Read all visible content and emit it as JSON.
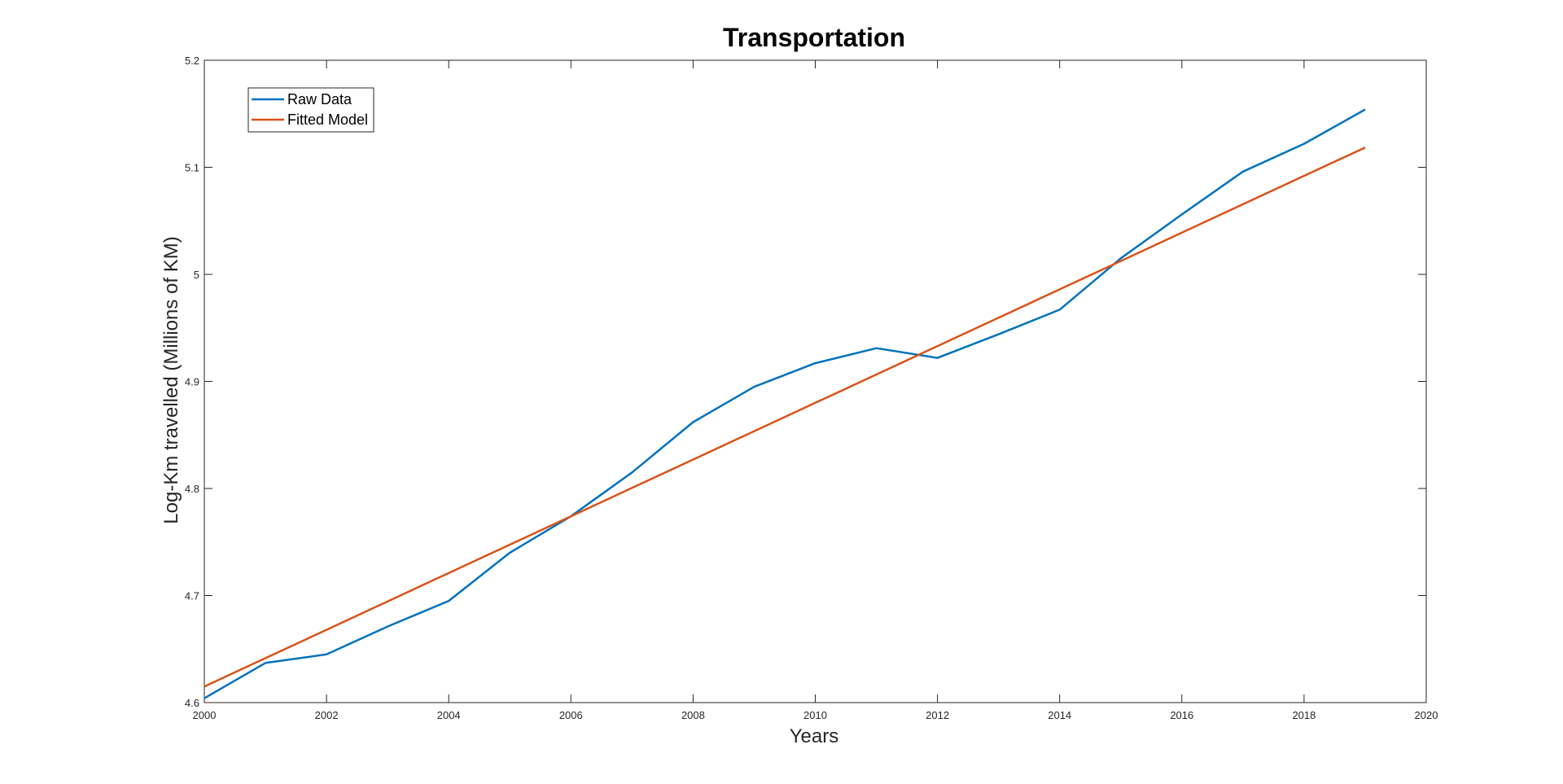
{
  "chart_data": {
    "type": "line",
    "title": "Transportation",
    "xlabel": "Years",
    "ylabel": "Log-Km travelled (Millions of KM)",
    "xlim": [
      2000,
      2020
    ],
    "ylim": [
      4.6,
      5.2
    ],
    "xticks": [
      "2000",
      "2002",
      "2004",
      "2006",
      "2008",
      "2010",
      "2012",
      "2014",
      "2016",
      "2018",
      "2020"
    ],
    "yticks": [
      "4.6",
      "4.7",
      "4.8",
      "4.9",
      "5",
      "5.1",
      "5.2"
    ],
    "grid": false,
    "legend": "top-left",
    "x": [
      2000,
      2001,
      2002,
      2003,
      2004,
      2005,
      2006,
      2007,
      2008,
      2009,
      2010,
      2011,
      2012,
      2013,
      2014,
      2015,
      2016,
      2017,
      2018,
      2019
    ],
    "series": [
      {
        "name": "Raw Data",
        "color": "#0072BD",
        "values": [
          4.604,
          4.637,
          4.645,
          4.671,
          4.695,
          4.74,
          4.774,
          4.815,
          4.862,
          4.895,
          4.917,
          4.931,
          4.922,
          4.944,
          4.967,
          5.015,
          5.056,
          5.096,
          5.122,
          5.154
        ]
      },
      {
        "name": "Fitted Model",
        "color": "#D95319",
        "values": [
          4.615,
          4.6415,
          4.668,
          4.6945,
          4.721,
          4.7475,
          4.774,
          4.8005,
          4.827,
          4.8535,
          4.88,
          4.9065,
          4.933,
          4.9595,
          4.986,
          5.0125,
          5.039,
          5.0655,
          5.092,
          5.1185
        ]
      }
    ]
  }
}
